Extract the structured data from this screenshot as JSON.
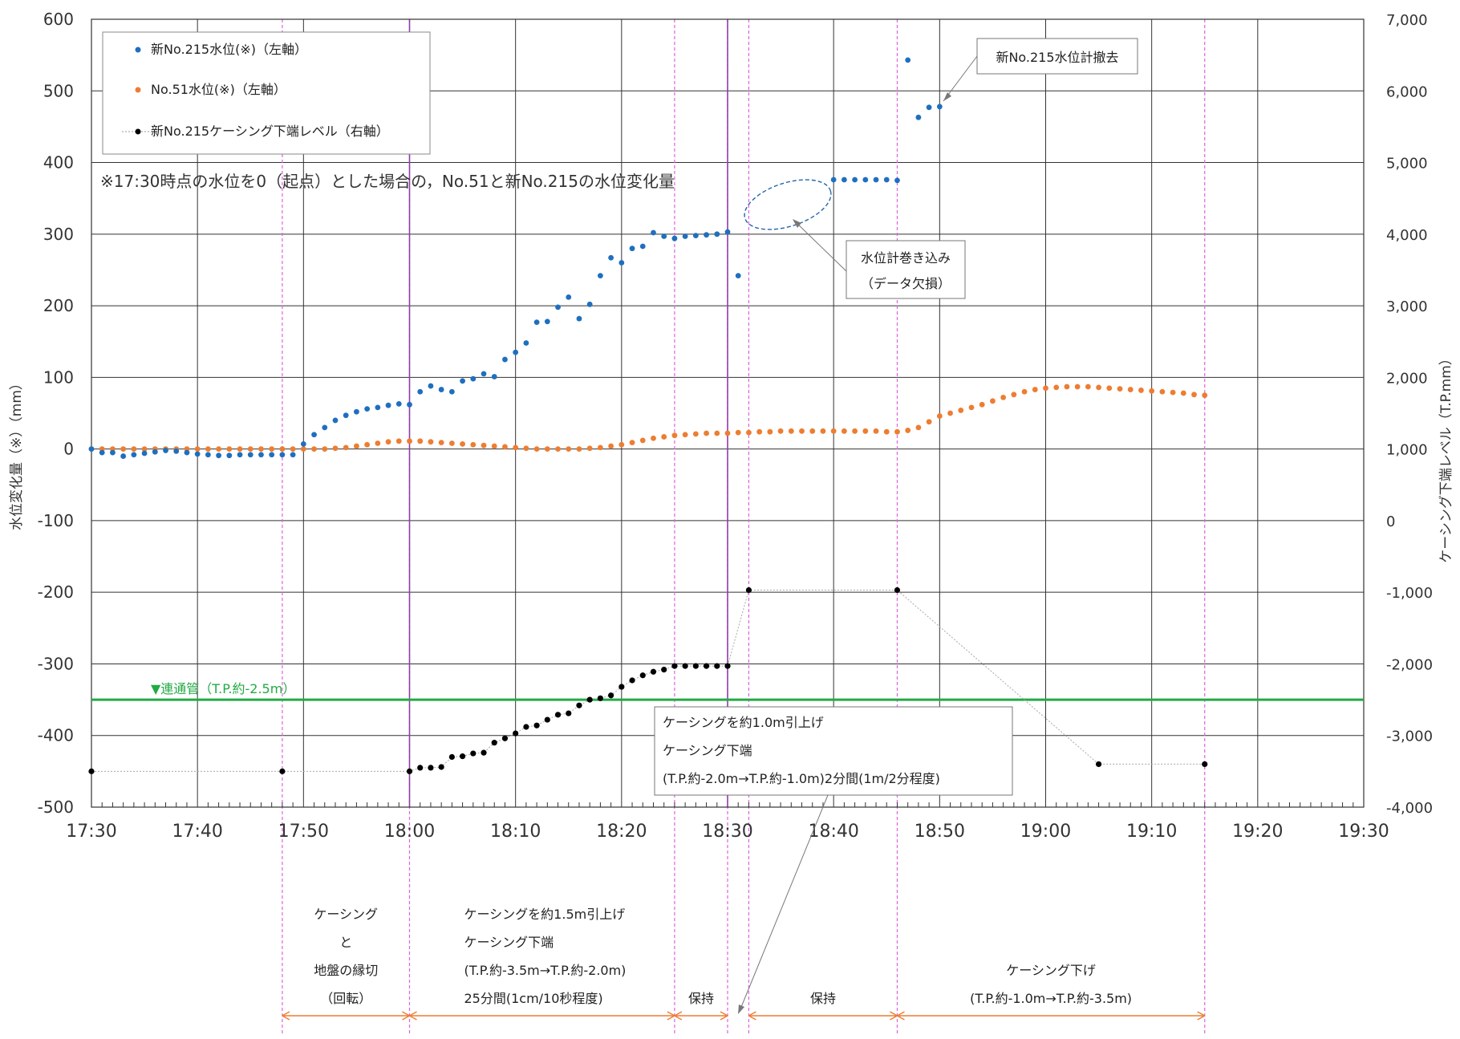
{
  "chart_data": {
    "type": "scatter",
    "x_axis": {
      "unit": "time",
      "min": "17:30",
      "max": "19:30",
      "ticks": [
        "17:30",
        "17:40",
        "17:50",
        "18:00",
        "18:10",
        "18:20",
        "18:30",
        "18:40",
        "18:50",
        "19:00",
        "19:10",
        "19:20",
        "19:30"
      ]
    },
    "y_left": {
      "label": "水位変化量（※）（mm）",
      "min": -500,
      "max": 600,
      "ticks": [
        "-500",
        "-400",
        "-300",
        "-200",
        "-100",
        "0",
        "100",
        "200",
        "300",
        "400",
        "500",
        "600"
      ]
    },
    "y_right": {
      "label": "ケーシング下端レベル（T.P.mm）",
      "min": -4000,
      "max": 7000,
      "ticks": [
        "-4,000",
        "-3,000",
        "-2,000",
        "-1,000",
        "0",
        "1,000",
        "2,000",
        "3,000",
        "4,000",
        "5,000",
        "6,000",
        "7,000"
      ]
    },
    "grid": true,
    "legend_position": "top-left",
    "note": "※17:30時点の水位を0（起点）とした場合の，No.51と新No.215の水位変化量",
    "colors": {
      "no215": "#1F6FBF",
      "no51": "#ED7D31",
      "casing": "#000000",
      "pipe": "#22AA44",
      "phase_line": "#E060E0",
      "event_line": "#8E3FA8",
      "bracket": "#ED7D31"
    },
    "series": [
      {
        "name": "新No.215水位(※)（左軸）",
        "axis": "left",
        "color": "#1F6FBF",
        "marker": "dot",
        "points": [
          [
            "17:30",
            0
          ],
          [
            "17:31",
            -5
          ],
          [
            "17:32",
            -5
          ],
          [
            "17:33",
            -10
          ],
          [
            "17:34",
            -8
          ],
          [
            "17:35",
            -6
          ],
          [
            "17:36",
            -4
          ],
          [
            "17:37",
            -2
          ],
          [
            "17:38",
            -3
          ],
          [
            "17:39",
            -5
          ],
          [
            "17:40",
            -7
          ],
          [
            "17:41",
            -8
          ],
          [
            "17:42",
            -9
          ],
          [
            "17:43",
            -9
          ],
          [
            "17:44",
            -8
          ],
          [
            "17:45",
            -8
          ],
          [
            "17:46",
            -8
          ],
          [
            "17:47",
            -8
          ],
          [
            "17:48",
            -8
          ],
          [
            "17:49",
            -8
          ],
          [
            "17:50",
            7
          ],
          [
            "17:51",
            20
          ],
          [
            "17:52",
            30
          ],
          [
            "17:53",
            40
          ],
          [
            "17:54",
            47
          ],
          [
            "17:55",
            52
          ],
          [
            "17:56",
            56
          ],
          [
            "17:57",
            58
          ],
          [
            "17:58",
            61
          ],
          [
            "17:59",
            63
          ],
          [
            "18:00",
            62
          ],
          [
            "18:01",
            80
          ],
          [
            "18:02",
            88
          ],
          [
            "18:03",
            83
          ],
          [
            "18:04",
            80
          ],
          [
            "18:05",
            95
          ],
          [
            "18:06",
            98
          ],
          [
            "18:07",
            105
          ],
          [
            "18:08",
            101
          ],
          [
            "18:09",
            125
          ],
          [
            "18:10",
            135
          ],
          [
            "18:11",
            148
          ],
          [
            "18:12",
            177
          ],
          [
            "18:13",
            178
          ],
          [
            "18:14",
            198
          ],
          [
            "18:15",
            212
          ],
          [
            "18:16",
            182
          ],
          [
            "18:17",
            202
          ],
          [
            "18:18",
            242
          ],
          [
            "18:19",
            267
          ],
          [
            "18:20",
            260
          ],
          [
            "18:21",
            280
          ],
          [
            "18:22",
            283
          ],
          [
            "18:23",
            302
          ],
          [
            "18:24",
            297
          ],
          [
            "18:25",
            294
          ],
          [
            "18:26",
            297
          ],
          [
            "18:27",
            298
          ],
          [
            "18:28",
            299
          ],
          [
            "18:29",
            300
          ],
          [
            "18:30",
            303
          ],
          [
            "18:31",
            242
          ],
          [
            "18:40",
            376
          ],
          [
            "18:41",
            376
          ],
          [
            "18:42",
            376
          ],
          [
            "18:43",
            376
          ],
          [
            "18:44",
            376
          ],
          [
            "18:45",
            376
          ],
          [
            "18:46",
            375
          ],
          [
            "18:47",
            543
          ],
          [
            "18:48",
            463
          ],
          [
            "18:49",
            477
          ],
          [
            "18:50",
            478
          ]
        ]
      },
      {
        "name": "No.51水位(※)（左軸）",
        "axis": "left",
        "color": "#ED7D31",
        "marker": "dot",
        "points": [
          [
            "17:30",
            0
          ],
          [
            "17:31",
            0
          ],
          [
            "17:32",
            0
          ],
          [
            "17:33",
            0
          ],
          [
            "17:34",
            0
          ],
          [
            "17:35",
            0
          ],
          [
            "17:36",
            0
          ],
          [
            "17:37",
            0
          ],
          [
            "17:38",
            0
          ],
          [
            "17:39",
            0
          ],
          [
            "17:40",
            0
          ],
          [
            "17:41",
            0
          ],
          [
            "17:42",
            0
          ],
          [
            "17:43",
            0
          ],
          [
            "17:44",
            0
          ],
          [
            "17:45",
            0
          ],
          [
            "17:46",
            0
          ],
          [
            "17:47",
            0
          ],
          [
            "17:48",
            0
          ],
          [
            "17:49",
            0
          ],
          [
            "17:50",
            0
          ],
          [
            "17:51",
            0
          ],
          [
            "17:52",
            0
          ],
          [
            "17:53",
            1
          ],
          [
            "17:54",
            2
          ],
          [
            "17:55",
            4
          ],
          [
            "17:56",
            6
          ],
          [
            "17:57",
            8
          ],
          [
            "17:58",
            10
          ],
          [
            "17:59",
            11
          ],
          [
            "18:00",
            11
          ],
          [
            "18:01",
            11
          ],
          [
            "18:02",
            10
          ],
          [
            "18:03",
            9
          ],
          [
            "18:04",
            8
          ],
          [
            "18:05",
            7
          ],
          [
            "18:06",
            6
          ],
          [
            "18:07",
            5
          ],
          [
            "18:08",
            4
          ],
          [
            "18:09",
            3
          ],
          [
            "18:10",
            2
          ],
          [
            "18:11",
            1
          ],
          [
            "18:12",
            0
          ],
          [
            "18:13",
            0
          ],
          [
            "18:14",
            0
          ],
          [
            "18:15",
            0
          ],
          [
            "18:16",
            0
          ],
          [
            "18:17",
            1
          ],
          [
            "18:18",
            2
          ],
          [
            "18:19",
            4
          ],
          [
            "18:20",
            6
          ],
          [
            "18:21",
            9
          ],
          [
            "18:22",
            12
          ],
          [
            "18:23",
            15
          ],
          [
            "18:24",
            17
          ],
          [
            "18:25",
            19
          ],
          [
            "18:26",
            20
          ],
          [
            "18:27",
            21
          ],
          [
            "18:28",
            22
          ],
          [
            "18:29",
            22
          ],
          [
            "18:30",
            22
          ],
          [
            "18:31",
            23
          ],
          [
            "18:32",
            23
          ],
          [
            "18:33",
            24
          ],
          [
            "18:34",
            24
          ],
          [
            "18:35",
            25
          ],
          [
            "18:36",
            25
          ],
          [
            "18:37",
            25
          ],
          [
            "18:38",
            25
          ],
          [
            "18:39",
            25
          ],
          [
            "18:40",
            25
          ],
          [
            "18:41",
            25
          ],
          [
            "18:42",
            25
          ],
          [
            "18:43",
            25
          ],
          [
            "18:44",
            25
          ],
          [
            "18:45",
            24
          ],
          [
            "18:46",
            24
          ],
          [
            "18:47",
            26
          ],
          [
            "18:48",
            30
          ],
          [
            "18:49",
            38
          ],
          [
            "18:50",
            46
          ],
          [
            "18:51",
            50
          ],
          [
            "18:52",
            54
          ],
          [
            "18:53",
            58
          ],
          [
            "18:54",
            62
          ],
          [
            "18:55",
            67
          ],
          [
            "18:56",
            72
          ],
          [
            "18:57",
            76
          ],
          [
            "18:58",
            80
          ],
          [
            "18:59",
            83
          ],
          [
            "19:00",
            85
          ],
          [
            "19:01",
            86
          ],
          [
            "19:02",
            87
          ],
          [
            "19:03",
            87
          ],
          [
            "19:04",
            87
          ],
          [
            "19:05",
            86
          ],
          [
            "19:06",
            85
          ],
          [
            "19:07",
            84
          ],
          [
            "19:08",
            83
          ],
          [
            "19:09",
            82
          ],
          [
            "19:10",
            81
          ],
          [
            "19:11",
            80
          ],
          [
            "19:12",
            79
          ],
          [
            "19:13",
            78
          ],
          [
            "19:14",
            76
          ],
          [
            "19:15",
            75
          ]
        ]
      },
      {
        "name": "新No.215ケーシング下端レベル（右軸）",
        "axis": "right",
        "color": "#000000",
        "marker": "dot-line",
        "points": [
          [
            "17:30",
            -3500
          ],
          [
            "17:48",
            -3500
          ],
          [
            "18:00",
            -3500
          ],
          [
            "18:01",
            -3450
          ],
          [
            "18:02",
            -3450
          ],
          [
            "18:03",
            -3440
          ],
          [
            "18:04",
            -3300
          ],
          [
            "18:05",
            -3290
          ],
          [
            "18:06",
            -3250
          ],
          [
            "18:07",
            -3240
          ],
          [
            "18:08",
            -3100
          ],
          [
            "18:09",
            -3040
          ],
          [
            "18:10",
            -2970
          ],
          [
            "18:11",
            -2880
          ],
          [
            "18:12",
            -2860
          ],
          [
            "18:13",
            -2780
          ],
          [
            "18:14",
            -2710
          ],
          [
            "18:15",
            -2690
          ],
          [
            "18:16",
            -2580
          ],
          [
            "18:17",
            -2500
          ],
          [
            "18:18",
            -2480
          ],
          [
            "18:19",
            -2440
          ],
          [
            "18:20",
            -2320
          ],
          [
            "18:21",
            -2230
          ],
          [
            "18:22",
            -2160
          ],
          [
            "18:23",
            -2110
          ],
          [
            "18:24",
            -2080
          ],
          [
            "18:25",
            -2030
          ],
          [
            "18:26",
            -2030
          ],
          [
            "18:27",
            -2030
          ],
          [
            "18:28",
            -2030
          ],
          [
            "18:29",
            -2030
          ],
          [
            "18:30",
            -2030
          ],
          [
            "18:32",
            -970
          ],
          [
            "18:46",
            -970
          ],
          [
            "19:05",
            -3400
          ],
          [
            "19:15",
            -3400
          ]
        ]
      }
    ],
    "reference_line": {
      "label": "▼連通管（T.P.約-2.5m）",
      "axis": "right",
      "value": -2500
    },
    "phase_lines": [
      "17:48",
      "18:00",
      "18:25",
      "18:30",
      "18:32",
      "18:46",
      "19:15"
    ],
    "event_lines": [
      "18:00",
      "18:30"
    ],
    "annotations": [
      {
        "id": "removed",
        "text": "新No.215水位計撤去"
      },
      {
        "id": "datalost",
        "lines": [
          "水位計巻き込み",
          "（データ欠損）"
        ]
      },
      {
        "id": "lift1m",
        "lines": [
          "ケーシングを約1.0m引上げ",
          "ケーシング下端",
          "(T.P.約-2.0m→T.P.約-1.0m)2分間(1m/2分程度)"
        ]
      }
    ],
    "phases": [
      {
        "from": "17:48",
        "to": "18:00",
        "lines": [
          "ケーシング",
          "と",
          "地盤の縁切",
          "（回転）"
        ]
      },
      {
        "from": "18:00",
        "to": "18:25",
        "lines": [
          "ケーシングを約1.5m引上げ",
          "ケーシング下端",
          "(T.P.約-3.5m→T.P.約-2.0m)",
          "25分間(1cm/10秒程度)"
        ]
      },
      {
        "from": "18:25",
        "to": "18:30",
        "lines": [
          "保持"
        ]
      },
      {
        "from": "18:32",
        "to": "18:46",
        "lines": [
          "保持"
        ]
      },
      {
        "from": "18:46",
        "to": "19:15",
        "lines": [
          "ケーシング下げ",
          "(T.P.約-1.0m→T.P.約-3.5m)"
        ]
      }
    ]
  }
}
